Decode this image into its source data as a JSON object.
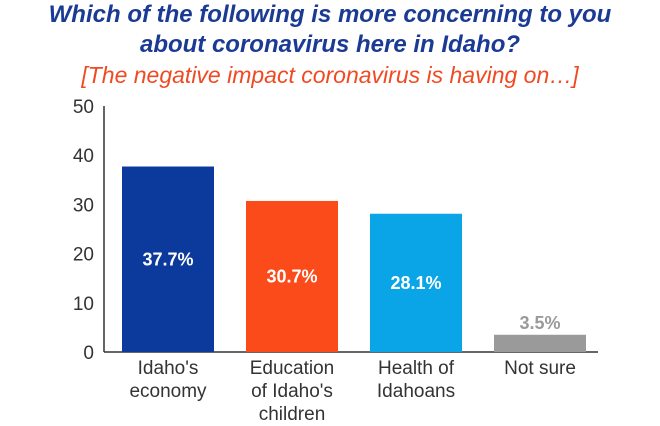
{
  "chart_data": {
    "type": "bar",
    "title": "Which of the following is more concerning to you about coronavirus here in Idaho?",
    "title_lines": [
      "Which of the following is more concerning to you",
      "about coronavirus here in Idaho?"
    ],
    "subtitle": "[The negative impact coronavirus is having on…]",
    "categories": [
      [
        "Idaho's",
        "economy"
      ],
      [
        "Education",
        "of Idaho's",
        "children"
      ],
      [
        "Health of",
        "Idahoans"
      ],
      [
        "Not sure"
      ]
    ],
    "values": [
      37.7,
      30.7,
      28.1,
      3.5
    ],
    "data_labels": [
      "37.7%",
      "30.7%",
      "28.1%",
      "3.5%"
    ],
    "colors": [
      "#0b3a9c",
      "#fb4b1b",
      "#0aa5e6",
      "#9a9a9a"
    ],
    "label_colors": [
      "#ffffff",
      "#ffffff",
      "#ffffff",
      "#9a9a9a"
    ],
    "label_placement": [
      "inside",
      "inside",
      "inside",
      "above"
    ],
    "ylim": [
      0,
      50
    ],
    "yticks": [
      0,
      10,
      20,
      30,
      40,
      50
    ],
    "xlabel": "",
    "ylabel": "",
    "grid": false,
    "legend": "none"
  }
}
